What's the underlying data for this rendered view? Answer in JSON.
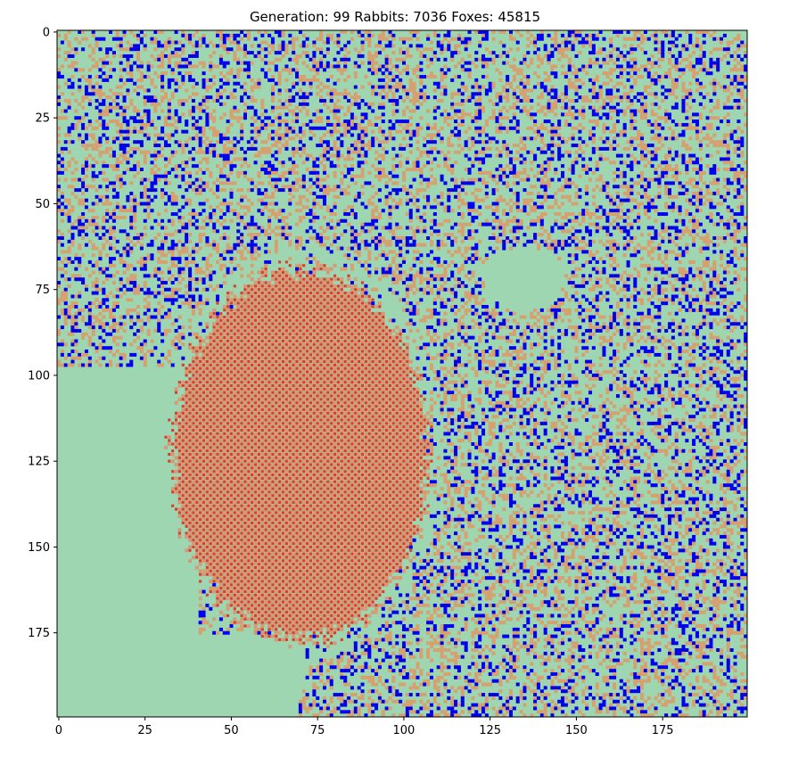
{
  "chart_data": {
    "type": "heatmap",
    "title": "Generation: 99 Rabbits: 7036 Foxes: 45815",
    "xlabel": "",
    "ylabel": "",
    "grid_size": [
      200,
      200
    ],
    "xlim": [
      0,
      199
    ],
    "ylim": [
      199,
      0
    ],
    "x_ticks": [
      0,
      25,
      50,
      75,
      100,
      125,
      150,
      175
    ],
    "y_ticks": [
      0,
      25,
      50,
      75,
      100,
      125,
      150,
      175
    ],
    "grid": false,
    "legend": "none",
    "colors": {
      "empty": "#9ed6b1",
      "grass": "#d6a070",
      "rabbit": "#0000ee",
      "fox_bg": "#d49a76",
      "fox_dot": "#e23a2a"
    },
    "regions": {
      "fox_cluster": {
        "center": [
          70,
          123
        ],
        "radii": [
          37,
          54
        ]
      },
      "grass_free_lower_left": {
        "x": [
          0,
          40
        ],
        "y": [
          98,
          199
        ]
      },
      "grass_free_right_pocket": {
        "center": [
          135,
          72
        ],
        "radii": [
          12,
          10
        ]
      }
    },
    "summary": {
      "generation": 99,
      "rabbits": 7036,
      "foxes": 45815
    }
  }
}
